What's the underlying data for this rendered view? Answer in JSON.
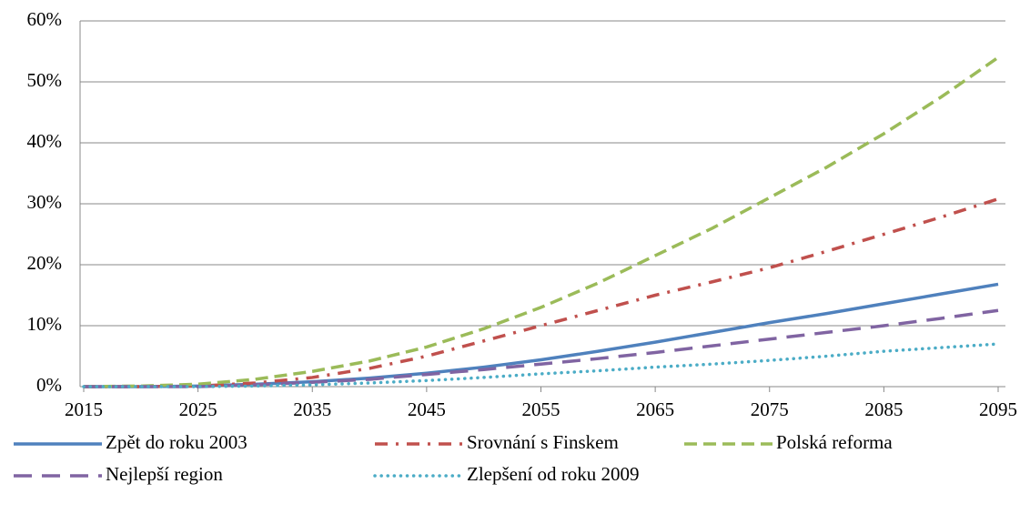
{
  "chart_data": {
    "type": "line",
    "x": [
      2015,
      2020,
      2025,
      2030,
      2035,
      2040,
      2045,
      2050,
      2055,
      2060,
      2065,
      2070,
      2075,
      2080,
      2085,
      2090,
      2095
    ],
    "xlim": [
      2015,
      2095
    ],
    "xticks": [
      2015,
      2025,
      2035,
      2045,
      2055,
      2065,
      2075,
      2085,
      2095
    ],
    "ylim": [
      0,
      60
    ],
    "yticks": [
      {
        "value": 0,
        "label": "0%"
      },
      {
        "value": 10,
        "label": "10%"
      },
      {
        "value": 20,
        "label": "20%"
      },
      {
        "value": 30,
        "label": "30%"
      },
      {
        "value": 40,
        "label": "40%"
      },
      {
        "value": 50,
        "label": "50%"
      },
      {
        "value": 60,
        "label": "60%"
      }
    ],
    "grid": true,
    "legend": "bottom",
    "series": [
      {
        "name": "Zpět do roku 2003",
        "color": "#4f81bd",
        "values": [
          0,
          0,
          0.1,
          0.4,
          0.8,
          1.4,
          2.2,
          3.2,
          4.4,
          5.8,
          7.3,
          8.9,
          10.5,
          12,
          13.6,
          15.2,
          16.8
        ]
      },
      {
        "name": "Srovnání s Finskem",
        "color": "#c0504d",
        "values": [
          0,
          0,
          0.1,
          0.6,
          1.5,
          3,
          5,
          7.5,
          10,
          12.5,
          15,
          17.2,
          19.5,
          22.2,
          25,
          27.8,
          30.8
        ]
      },
      {
        "name": "Polská reforma",
        "color": "#9bbb59",
        "values": [
          0,
          0.1,
          0.4,
          1.2,
          2.5,
          4.2,
          6.5,
          9.5,
          13,
          17,
          21.5,
          26,
          31,
          36,
          41.5,
          47.5,
          54
        ]
      },
      {
        "name": "Nejlepší region",
        "color": "#8064a2",
        "values": [
          0,
          0,
          0,
          0.3,
          0.7,
          1.2,
          2,
          2.8,
          3.7,
          4.6,
          5.6,
          6.7,
          7.8,
          8.9,
          10,
          11.2,
          12.5
        ]
      },
      {
        "name": "Zlepšení od roku 2009",
        "color": "#4bacc6",
        "values": [
          0,
          0,
          0,
          0.1,
          0.3,
          0.6,
          1,
          1.5,
          2.1,
          2.6,
          3.2,
          3.7,
          4.3,
          5,
          5.8,
          6.4,
          7
        ]
      }
    ]
  }
}
